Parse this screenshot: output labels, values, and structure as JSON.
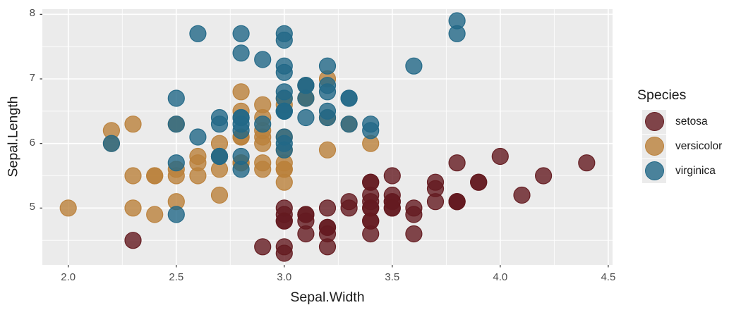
{
  "chart_data": {
    "type": "scatter",
    "title": "",
    "xlabel": "Sepal.Width",
    "ylabel": "Sepal.Length",
    "xlim": [
      1.88,
      4.52
    ],
    "ylim": [
      4.12,
      8.08
    ],
    "x_ticks": [
      2.0,
      2.5,
      3.0,
      3.5,
      4.0,
      4.5
    ],
    "x_tick_labels": [
      "2.0",
      "2.5",
      "3.0",
      "3.5",
      "4.0",
      "4.5"
    ],
    "y_ticks": [
      5,
      6,
      7,
      8
    ],
    "y_tick_labels": [
      "5",
      "6",
      "7",
      "8"
    ],
    "x_minor_ticks": [
      2.25,
      2.75,
      3.25,
      3.75,
      4.25
    ],
    "y_minor_ticks": [
      4.5,
      5.5,
      6.5,
      7.5
    ],
    "grid": "major-and-minor",
    "legend": {
      "title": "Species",
      "position": "right"
    },
    "point_alpha": 0.8,
    "point_radius": 11.5,
    "style": {
      "panel_bg": "#EBEBEB",
      "grid_color": "#FFFFFF",
      "tick_label_color": "#4D4D4D",
      "axis_title_color": "#1A1A1A",
      "tick_color": "#333333",
      "background": "#FFFFFF"
    },
    "series": [
      {
        "name": "setosa",
        "color": "#641A20",
        "points": [
          [
            3.5,
            5.1
          ],
          [
            3.0,
            4.9
          ],
          [
            3.2,
            4.7
          ],
          [
            3.1,
            4.6
          ],
          [
            3.6,
            5.0
          ],
          [
            3.9,
            5.4
          ],
          [
            3.4,
            4.6
          ],
          [
            3.4,
            5.0
          ],
          [
            2.9,
            4.4
          ],
          [
            3.1,
            4.9
          ],
          [
            3.7,
            5.4
          ],
          [
            3.4,
            4.8
          ],
          [
            3.0,
            4.8
          ],
          [
            3.0,
            4.3
          ],
          [
            4.0,
            5.8
          ],
          [
            4.4,
            5.7
          ],
          [
            3.9,
            5.4
          ],
          [
            3.5,
            5.1
          ],
          [
            3.8,
            5.7
          ],
          [
            3.8,
            5.1
          ],
          [
            3.4,
            5.4
          ],
          [
            3.7,
            5.1
          ],
          [
            3.6,
            4.6
          ],
          [
            3.3,
            5.1
          ],
          [
            3.4,
            4.8
          ],
          [
            3.0,
            5.0
          ],
          [
            3.4,
            5.0
          ],
          [
            3.5,
            5.2
          ],
          [
            3.4,
            5.2
          ],
          [
            3.2,
            4.7
          ],
          [
            3.1,
            4.8
          ],
          [
            3.4,
            5.4
          ],
          [
            4.1,
            5.2
          ],
          [
            4.2,
            5.5
          ],
          [
            3.1,
            4.9
          ],
          [
            3.2,
            5.0
          ],
          [
            3.5,
            5.5
          ],
          [
            3.6,
            4.9
          ],
          [
            3.0,
            4.4
          ],
          [
            3.4,
            5.1
          ],
          [
            3.5,
            5.0
          ],
          [
            2.3,
            4.5
          ],
          [
            3.2,
            4.4
          ],
          [
            3.5,
            5.0
          ],
          [
            3.8,
            5.1
          ],
          [
            3.0,
            4.8
          ],
          [
            3.8,
            5.1
          ],
          [
            3.2,
            4.6
          ],
          [
            3.7,
            5.3
          ],
          [
            3.3,
            5.0
          ]
        ]
      },
      {
        "name": "versicolor",
        "color": "#BA813B",
        "points": [
          [
            3.2,
            7.0
          ],
          [
            3.2,
            6.4
          ],
          [
            3.1,
            6.9
          ],
          [
            2.3,
            5.5
          ],
          [
            2.8,
            6.5
          ],
          [
            2.8,
            5.7
          ],
          [
            3.3,
            6.3
          ],
          [
            2.4,
            4.9
          ],
          [
            2.9,
            6.6
          ],
          [
            2.7,
            5.2
          ],
          [
            2.0,
            5.0
          ],
          [
            3.0,
            5.9
          ],
          [
            2.2,
            6.0
          ],
          [
            2.9,
            6.1
          ],
          [
            2.9,
            5.6
          ],
          [
            3.1,
            6.7
          ],
          [
            3.0,
            5.6
          ],
          [
            2.7,
            5.8
          ],
          [
            2.2,
            6.2
          ],
          [
            2.5,
            5.6
          ],
          [
            3.2,
            5.9
          ],
          [
            2.8,
            6.1
          ],
          [
            2.5,
            6.3
          ],
          [
            2.8,
            6.1
          ],
          [
            2.9,
            6.4
          ],
          [
            3.0,
            6.6
          ],
          [
            2.8,
            6.8
          ],
          [
            3.0,
            6.7
          ],
          [
            2.9,
            6.0
          ],
          [
            2.6,
            5.7
          ],
          [
            2.4,
            5.5
          ],
          [
            2.4,
            5.5
          ],
          [
            2.7,
            5.8
          ],
          [
            2.7,
            6.0
          ],
          [
            3.0,
            5.4
          ],
          [
            3.4,
            6.0
          ],
          [
            3.1,
            6.7
          ],
          [
            2.3,
            6.3
          ],
          [
            3.0,
            5.6
          ],
          [
            2.5,
            5.5
          ],
          [
            2.6,
            5.5
          ],
          [
            3.0,
            6.1
          ],
          [
            2.6,
            5.8
          ],
          [
            2.3,
            5.0
          ],
          [
            2.7,
            5.6
          ],
          [
            3.0,
            5.7
          ],
          [
            2.9,
            5.7
          ],
          [
            2.9,
            6.2
          ],
          [
            2.5,
            5.1
          ],
          [
            2.8,
            5.7
          ]
        ]
      },
      {
        "name": "virginica",
        "color": "#226887",
        "points": [
          [
            3.3,
            6.3
          ],
          [
            2.7,
            5.8
          ],
          [
            3.0,
            7.1
          ],
          [
            2.9,
            6.3
          ],
          [
            3.0,
            6.5
          ],
          [
            3.0,
            7.6
          ],
          [
            2.5,
            4.9
          ],
          [
            2.9,
            7.3
          ],
          [
            2.5,
            6.7
          ],
          [
            3.6,
            7.2
          ],
          [
            3.2,
            6.5
          ],
          [
            2.7,
            6.4
          ],
          [
            3.0,
            6.8
          ],
          [
            2.5,
            5.7
          ],
          [
            2.8,
            5.8
          ],
          [
            3.2,
            6.4
          ],
          [
            3.0,
            6.5
          ],
          [
            3.8,
            7.7
          ],
          [
            2.6,
            7.7
          ],
          [
            2.2,
            6.0
          ],
          [
            3.2,
            6.9
          ],
          [
            2.8,
            5.6
          ],
          [
            2.8,
            7.7
          ],
          [
            2.7,
            6.3
          ],
          [
            3.3,
            6.7
          ],
          [
            3.2,
            7.2
          ],
          [
            2.8,
            6.2
          ],
          [
            3.0,
            6.1
          ],
          [
            2.8,
            6.4
          ],
          [
            3.0,
            7.2
          ],
          [
            2.8,
            7.4
          ],
          [
            3.8,
            7.9
          ],
          [
            2.8,
            6.4
          ],
          [
            2.8,
            6.3
          ],
          [
            2.6,
            6.1
          ],
          [
            3.0,
            7.7
          ],
          [
            3.4,
            6.3
          ],
          [
            3.1,
            6.4
          ],
          [
            3.0,
            6.0
          ],
          [
            3.1,
            6.9
          ],
          [
            3.1,
            6.7
          ],
          [
            3.1,
            6.9
          ],
          [
            2.7,
            5.8
          ],
          [
            3.2,
            6.8
          ],
          [
            3.3,
            6.7
          ],
          [
            3.0,
            6.7
          ],
          [
            2.5,
            6.3
          ],
          [
            3.0,
            6.5
          ],
          [
            3.4,
            6.2
          ],
          [
            3.0,
            5.9
          ]
        ]
      }
    ]
  }
}
